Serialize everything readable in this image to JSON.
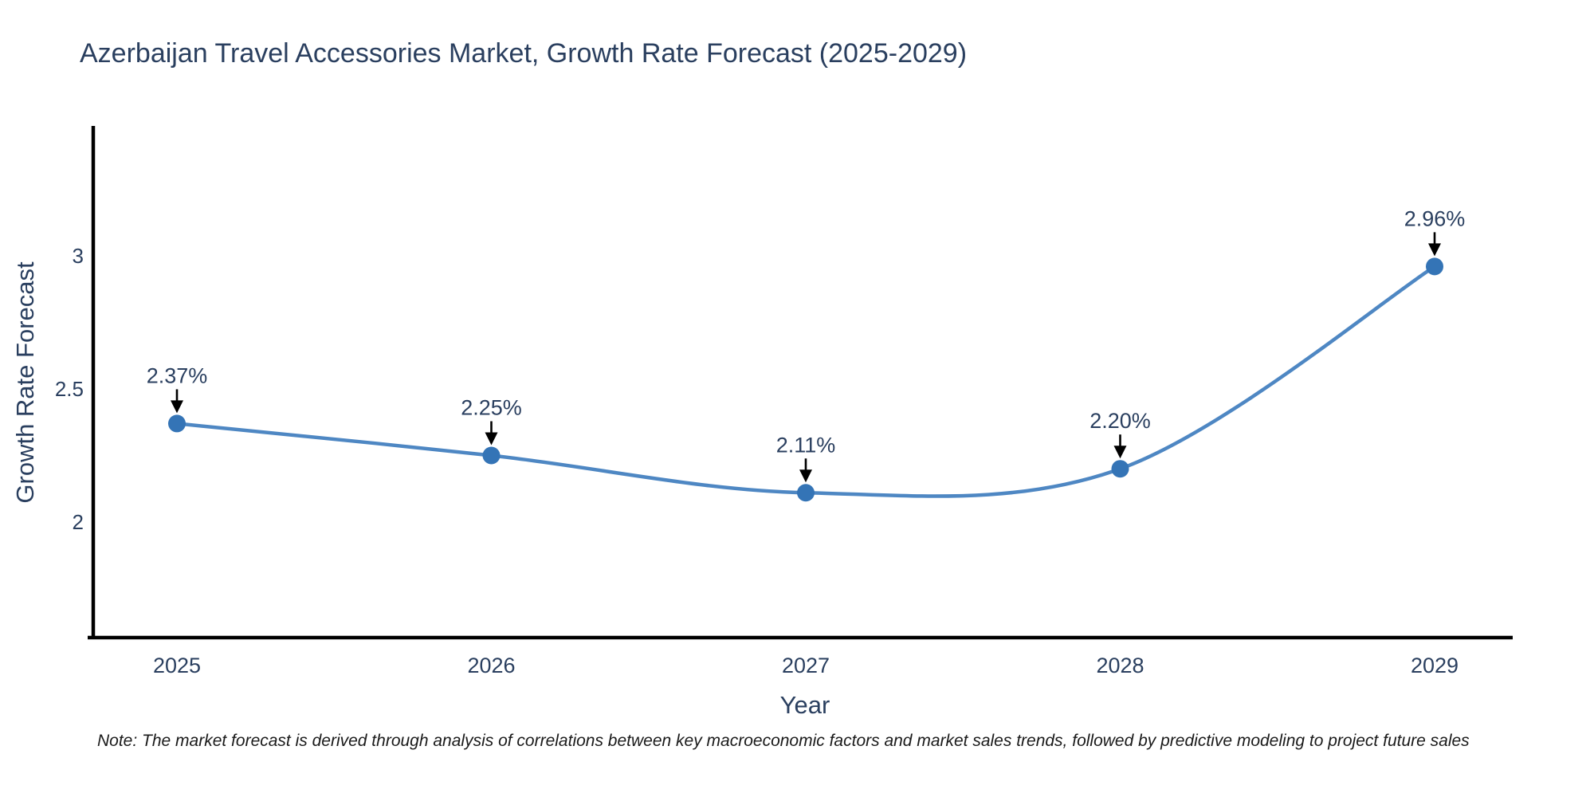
{
  "chart_data": {
    "type": "line",
    "title": "Azerbaijan Travel Accessories Market, Growth Rate Forecast (2025-2029)",
    "xlabel": "Year",
    "ylabel": "Growth Rate Forecast",
    "categories": [
      "2025",
      "2026",
      "2027",
      "2028",
      "2029"
    ],
    "values": [
      2.37,
      2.25,
      2.11,
      2.2,
      2.96
    ],
    "point_labels": [
      "2.37%",
      "2.25%",
      "2.11%",
      "2.20%",
      "2.96%"
    ],
    "yticks": [
      2,
      2.5,
      3
    ],
    "ytick_labels": [
      "2",
      "2.5",
      "3"
    ],
    "ylim": [
      1.57,
      3.49
    ],
    "grid": false,
    "legend_position": "none",
    "line_shape": "spline",
    "marker_style": "circle",
    "annotation_arrows": true,
    "colors": {
      "line": "#4e87c3",
      "marker": "#3474b6",
      "arrow": "#000000",
      "axis": "#000000",
      "tick_text": "#2a3f5f",
      "title_text": "#2a3f5f",
      "note_text": "#1a1a1a",
      "background": "#ffffff"
    }
  },
  "footnote": "Note: The market forecast is derived through analysis of correlations between key macroeconomic factors and market sales trends, followed by predictive modeling to project future sales"
}
